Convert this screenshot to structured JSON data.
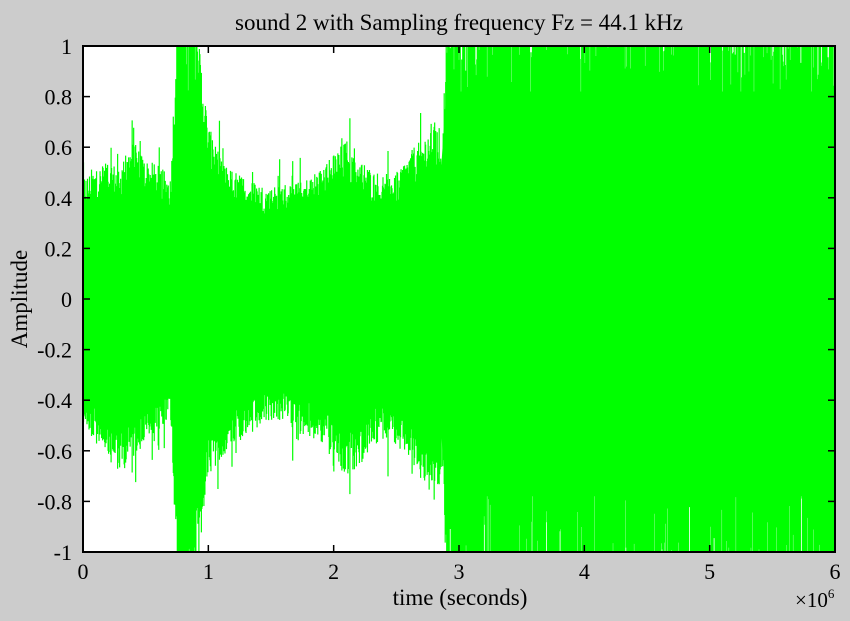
{
  "chart_data": {
    "type": "line",
    "title": "sound 2 with Sampling frequency Fz = 44.1 kHz",
    "xlabel": "time (seconds)",
    "ylabel": "Amplitude",
    "x_multiplier_label": "×10",
    "x_multiplier_exponent": "6",
    "xlim": [
      0,
      6
    ],
    "ylim": [
      -1,
      1
    ],
    "xticks": [
      0,
      1,
      2,
      3,
      4,
      5,
      6
    ],
    "yticks": [
      1,
      0.8,
      0.6,
      0.4,
      0.2,
      0,
      -0.2,
      -0.4,
      -0.6,
      -0.8,
      -1
    ],
    "ytick_labels": [
      "1",
      "0.8",
      "0.6",
      "0.4",
      "0.2",
      "0",
      "-0.2",
      "-0.4",
      "-0.6",
      "-0.8",
      "-1"
    ],
    "grid": false,
    "line_color": "#00ff00",
    "background_color": "#ffffff",
    "figure_background": "#cccccc",
    "series": [
      {
        "envelope_x": [
          0,
          0.1,
          0.2,
          0.3,
          0.4,
          0.5,
          0.6,
          0.7,
          0.75,
          0.9,
          1.0,
          1.1,
          1.2,
          1.3,
          1.4,
          1.5,
          1.6,
          1.7,
          1.8,
          1.9,
          2.0,
          2.1,
          2.2,
          2.3,
          2.4,
          2.5,
          2.6,
          2.7,
          2.8,
          2.87,
          2.9,
          3.2,
          3.5,
          4.0,
          4.5,
          5.0,
          5.5,
          6.0
        ],
        "envelope_upper": [
          0.42,
          0.45,
          0.47,
          0.46,
          0.55,
          0.48,
          0.46,
          0.42,
          1.0,
          1.0,
          0.6,
          0.48,
          0.44,
          0.42,
          0.4,
          0.38,
          0.4,
          0.4,
          0.42,
          0.45,
          0.5,
          0.55,
          0.48,
          0.45,
          0.4,
          0.44,
          0.5,
          0.55,
          0.62,
          0.55,
          1.0,
          1.0,
          1.0,
          1.0,
          1.0,
          1.0,
          1.0,
          1.0
        ],
        "envelope_lower": [
          -0.42,
          -0.5,
          -0.55,
          -0.6,
          -0.55,
          -0.5,
          -0.45,
          -0.42,
          -1.0,
          -1.0,
          -0.6,
          -0.55,
          -0.5,
          -0.48,
          -0.45,
          -0.42,
          -0.42,
          -0.45,
          -0.48,
          -0.5,
          -0.55,
          -0.62,
          -0.58,
          -0.52,
          -0.48,
          -0.5,
          -0.55,
          -0.62,
          -0.7,
          -0.6,
          -1.0,
          -1.0,
          -1.0,
          -1.0,
          -1.0,
          -1.0,
          -1.0,
          -1.0
        ],
        "peaks_upper": [
          0.72,
          0.7,
          0.68,
          0.62,
          0.68,
          0.75,
          0.98,
          1.0
        ],
        "peaks_lower": [
          -0.65,
          -0.7,
          -0.68,
          -0.72,
          -0.75,
          -0.8,
          -1.0,
          -1.0
        ]
      }
    ]
  }
}
